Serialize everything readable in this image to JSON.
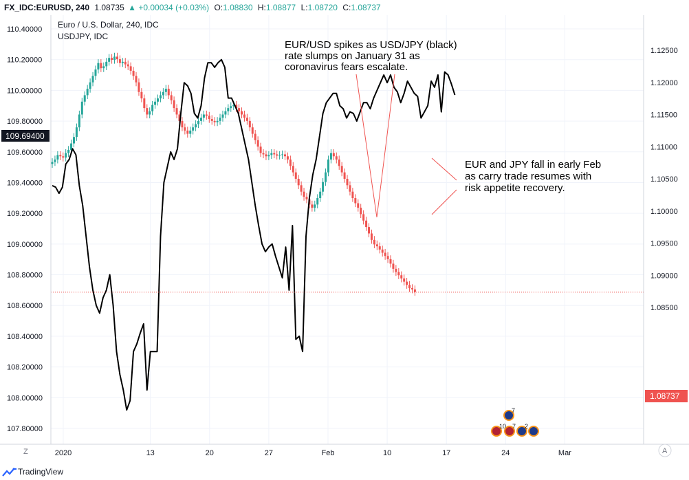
{
  "header": {
    "symbol": "FX_IDC:EURUSD, 240",
    "last": "1.08735",
    "change": "+0.00034 (+0.03%)",
    "o_label": "O:",
    "o": "1.08830",
    "h_label": "H:",
    "h": "1.08877",
    "l_label": "L:",
    "l": "1.08720",
    "c_label": "C:",
    "c": "1.08737"
  },
  "legend": {
    "main": "Euro / U.S. Dollar, 240, IDC",
    "overlay": "USDJPY, IDC"
  },
  "annotations": {
    "top": [
      "EUR/USD spikes as USD/JPY (black)",
      "rate slumps on January 31 as",
      "coronavirus fears escalate."
    ],
    "right": [
      "EUR and JPY fall in early Feb",
      "as carry trade resumes with",
      "risk appetite recovery."
    ]
  },
  "footer": {
    "brand": "TradingView",
    "left_button": "Z",
    "right_button": "A"
  },
  "badges": {
    "price_left": "109.69400",
    "price_right": "1.08737"
  },
  "events": [
    "7",
    "10",
    "7",
    "2"
  ],
  "colors": {
    "up": "#26a69a",
    "down": "#ef5350",
    "overlay": "#000000",
    "badge_dark": "#131722",
    "badge_red": "#ef5350"
  },
  "chart_data": {
    "type": "line",
    "x_ticks": [
      "2020",
      "13",
      "20",
      "27",
      "Feb",
      "10",
      "17",
      "24",
      "Mar"
    ],
    "left_axis": {
      "series": "USDJPY",
      "ticks": [
        "110.40000",
        "110.20000",
        "110.00000",
        "109.80000",
        "109.60000",
        "109.40000",
        "109.20000",
        "109.00000",
        "108.80000",
        "108.60000",
        "108.40000",
        "108.20000",
        "108.00000",
        "107.80000"
      ],
      "range": [
        107.75,
        110.45
      ]
    },
    "right_axis": {
      "series": "EURUSD",
      "ticks": [
        "1.12500",
        "1.12000",
        "1.11500",
        "1.11000",
        "1.10500",
        "1.10000",
        "1.09500",
        "1.09000",
        "1.08500"
      ],
      "range": [
        1.0825,
        1.1285
      ]
    },
    "series": [
      {
        "name": "USDJPY, IDC",
        "axis": "left",
        "style": "line",
        "color": "#000000",
        "x": [
          0,
          0.4,
          0.8,
          1.2,
          1.6,
          2.0,
          2.4,
          2.8,
          3.2,
          3.6,
          4.0,
          4.4,
          4.8,
          5.2,
          5.6,
          6.0,
          6.4,
          6.8,
          7.2,
          7.6,
          8.0,
          8.4,
          8.8,
          9.2,
          9.6,
          10.0,
          10.4,
          10.8,
          11.2,
          11.6,
          12.0,
          12.4,
          12.8,
          13.2,
          13.6,
          14.0,
          14.4,
          14.8,
          15.2,
          15.6,
          16.0,
          16.4,
          16.8,
          17.2,
          17.6,
          18.0,
          18.4,
          18.8,
          19.2,
          19.6,
          20.0,
          20.4,
          20.8,
          21.2,
          21.6,
          22.0,
          22.4,
          22.8,
          23.2,
          23.6,
          24.0,
          24.4,
          24.8,
          25.2,
          25.6,
          26.0,
          26.4,
          26.8,
          27.2,
          27.6,
          28.0,
          28.4,
          28.8,
          29.2,
          29.6,
          30.0,
          30.4,
          30.8,
          31.2,
          31.6,
          32.0,
          32.4,
          32.8,
          33.2,
          33.6,
          34.0,
          34.4,
          34.8,
          35.2,
          35.6,
          36.0,
          36.4,
          36.8,
          37.2,
          37.6,
          38.0,
          38.4,
          38.8,
          39.2,
          39.6,
          40.0,
          40.4,
          40.8,
          41.2,
          41.6,
          42.0,
          42.4,
          42.8,
          43.2,
          43.6,
          44.0,
          44.4,
          44.8,
          45.2,
          45.6,
          46.0,
          46.4,
          46.8,
          47.2,
          47.6
        ],
        "values": [
          109.38,
          109.37,
          109.33,
          109.37,
          109.52,
          109.55,
          109.62,
          109.58,
          109.38,
          109.25,
          109.05,
          108.85,
          108.7,
          108.6,
          108.55,
          108.65,
          108.7,
          108.8,
          108.6,
          108.3,
          108.15,
          108.05,
          107.92,
          107.98,
          108.3,
          108.35,
          108.42,
          108.48,
          108.05,
          108.3,
          108.3,
          108.3,
          109.05,
          109.4,
          109.5,
          109.6,
          109.55,
          109.62,
          109.85,
          110.05,
          110.03,
          109.98,
          109.85,
          109.82,
          109.9,
          110.08,
          110.18,
          110.18,
          110.15,
          110.18,
          110.2,
          110.15,
          109.95,
          109.95,
          109.9,
          109.85,
          109.75,
          109.65,
          109.55,
          109.4,
          109.25,
          109.12,
          109.0,
          108.95,
          108.98,
          109.0,
          108.92,
          108.85,
          108.78,
          108.98,
          108.7,
          109.12,
          108.38,
          108.4,
          108.3,
          109.05,
          109.3,
          109.45,
          109.55,
          109.7,
          109.85,
          109.92,
          109.95,
          109.98,
          109.98,
          109.9,
          109.88,
          109.82,
          109.86,
          109.85,
          109.8,
          109.86,
          109.92,
          109.92,
          109.88,
          109.95,
          110.0,
          110.05,
          110.1,
          110.05,
          110.1,
          110.02,
          109.99,
          109.92,
          109.98,
          110.06,
          110.02,
          109.98,
          109.96,
          109.82,
          109.86,
          109.9,
          110.06,
          110.02,
          110.1,
          109.86,
          110.12,
          110.1,
          110.04,
          109.97
        ]
      },
      {
        "name": "Euro / U.S. Dollar, 240, IDC",
        "axis": "right",
        "style": "candles",
        "x_start": 0,
        "x_step": 0.2,
        "up_color": "#26a69a",
        "down_color": "#ef5350",
        "closes": [
          1.1076,
          1.108,
          1.1087,
          1.1085,
          1.1083,
          1.109,
          1.1095,
          1.1105,
          1.1115,
          1.113,
          1.115,
          1.117,
          1.118,
          1.119,
          1.12,
          1.121,
          1.122,
          1.123,
          1.1222,
          1.1225,
          1.1232,
          1.1238,
          1.1235,
          1.124,
          1.1236,
          1.123,
          1.1232,
          1.1228,
          1.1225,
          1.1218,
          1.121,
          1.12,
          1.1185,
          1.1175,
          1.116,
          1.115,
          1.1155,
          1.1165,
          1.117,
          1.1175,
          1.118,
          1.1185,
          1.119,
          1.118,
          1.1172,
          1.116,
          1.115,
          1.114,
          1.113,
          1.1125,
          1.112,
          1.1125,
          1.113,
          1.1135,
          1.114,
          1.1145,
          1.115,
          1.1148,
          1.1143,
          1.114,
          1.1138,
          1.114,
          1.1145,
          1.115,
          1.1155,
          1.116,
          1.1163,
          1.1165,
          1.116,
          1.1155,
          1.115,
          1.1145,
          1.114,
          1.113,
          1.112,
          1.111,
          1.11,
          1.109,
          1.1088,
          1.1085,
          1.1087,
          1.109,
          1.1088,
          1.1086,
          1.1087,
          1.1088,
          1.1085,
          1.108,
          1.107,
          1.106,
          1.105,
          1.104,
          1.103,
          1.1022,
          1.1018,
          1.101,
          1.1005,
          1.101,
          1.102,
          1.103,
          1.1045,
          1.106,
          1.108,
          1.109,
          1.1085,
          1.108,
          1.107,
          1.106,
          1.105,
          1.104,
          1.103,
          1.102,
          1.1012,
          1.1005,
          1.0995,
          1.0985,
          1.0975,
          1.0965,
          1.0955,
          1.0948,
          1.0945,
          1.094,
          1.0935,
          1.093,
          1.0925,
          1.0918,
          1.091,
          1.0905,
          1.09,
          1.0895,
          1.089,
          1.0885,
          1.088,
          1.0878,
          1.0874
        ]
      }
    ],
    "last_line": {
      "axis": "right",
      "value": 1.08737,
      "color": "#ef5350"
    }
  }
}
